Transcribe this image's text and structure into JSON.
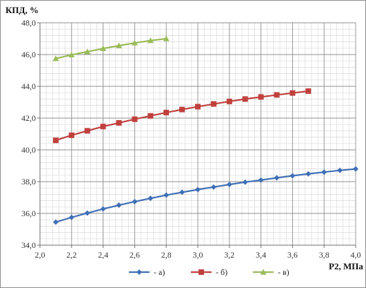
{
  "chart_data": {
    "type": "line",
    "title": "",
    "ylabel": "КПД, %",
    "xlabel": "Р2, МПа",
    "xlim": [
      2.0,
      4.0
    ],
    "ylim": [
      34.0,
      48.0
    ],
    "x_ticks": [
      "2,0",
      "2,2",
      "2,4",
      "2,6",
      "2,8",
      "3,0",
      "3,2",
      "3,4",
      "3,6",
      "3,8",
      "4,0"
    ],
    "y_ticks": [
      "34,0",
      "36,0",
      "38,0",
      "40,0",
      "42,0",
      "44,0",
      "46,0",
      "48,0"
    ],
    "grid": true,
    "legend_position": "bottom",
    "series": [
      {
        "name": "- а)",
        "color": "#3f6fb6",
        "marker": "diamond",
        "x": [
          2.1,
          2.2,
          2.3,
          2.4,
          2.5,
          2.6,
          2.7,
          2.8,
          2.9,
          3.0,
          3.1,
          3.2,
          3.3,
          3.4,
          3.5,
          3.6,
          3.7,
          3.8,
          3.9,
          4.0
        ],
        "y": [
          35.45,
          35.75,
          36.02,
          36.28,
          36.52,
          36.74,
          36.95,
          37.15,
          37.33,
          37.5,
          37.66,
          37.82,
          37.97,
          38.1,
          38.24,
          38.37,
          38.49,
          38.6,
          38.71,
          38.8
        ]
      },
      {
        "name": "- б)",
        "color": "#c0403d",
        "marker": "square",
        "x": [
          2.1,
          2.2,
          2.3,
          2.4,
          2.5,
          2.6,
          2.7,
          2.8,
          2.9,
          3.0,
          3.1,
          3.2,
          3.3,
          3.4,
          3.5,
          3.6,
          3.7
        ],
        "y": [
          40.6,
          40.92,
          41.2,
          41.47,
          41.7,
          41.93,
          42.14,
          42.35,
          42.54,
          42.72,
          42.89,
          43.05,
          43.2,
          43.33,
          43.46,
          43.58,
          43.7
        ]
      },
      {
        "name": "- в)",
        "color": "#9bbb59",
        "marker": "triangle",
        "x": [
          2.1,
          2.2,
          2.3,
          2.4,
          2.5,
          2.6,
          2.7,
          2.8
        ],
        "y": [
          45.75,
          45.98,
          46.18,
          46.38,
          46.56,
          46.73,
          46.88,
          47.0
        ]
      }
    ]
  }
}
